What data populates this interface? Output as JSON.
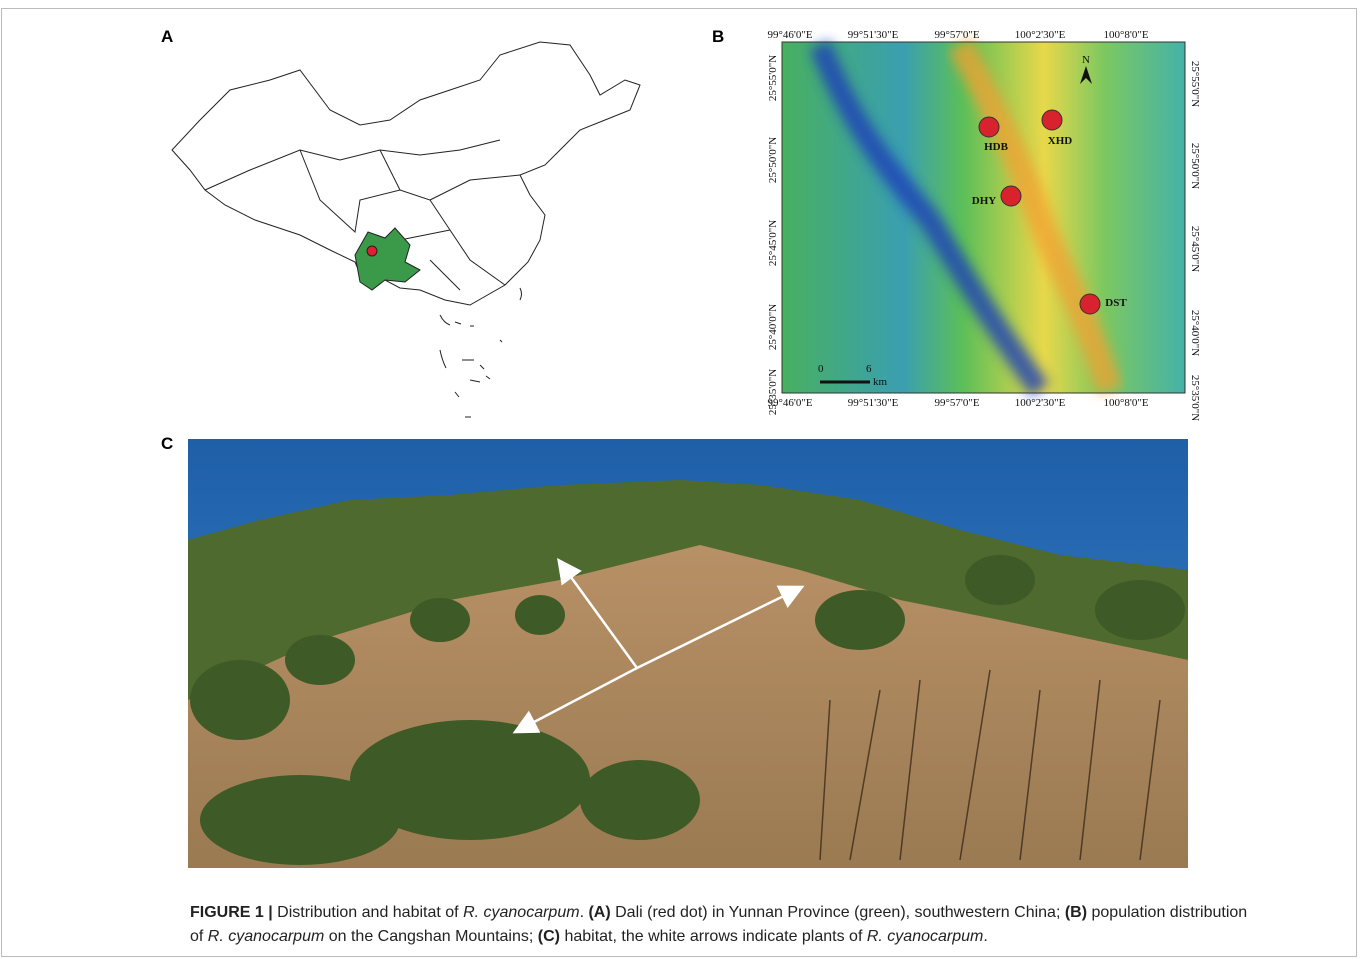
{
  "panels": {
    "a": {
      "label": "A"
    },
    "b": {
      "label": "B",
      "longitudes": [
        "99°46'0\"E",
        "99°51'30\"E",
        "99°57'0\"E",
        "100°2'30\"E",
        "100°8'0\"E"
      ],
      "latitudes": [
        "25°55'0\"N",
        "25°50'0\"N",
        "25°45'0\"N",
        "25°40'0\"N",
        "25°35'0\"N"
      ],
      "sites": [
        "HDB",
        "XHD",
        "DHY",
        "DST"
      ],
      "scale": {
        "start": "0",
        "end": "6",
        "unit": "km"
      },
      "north": "N"
    },
    "c": {
      "label": "C"
    }
  },
  "caption": {
    "segments": [
      {
        "text": "FIGURE 1 |",
        "style": "bold"
      },
      {
        "text": " Distribution and habitat of ",
        "style": "normal"
      },
      {
        "text": "R. cyanocarpum",
        "style": "italic"
      },
      {
        "text": ". ",
        "style": "normal"
      },
      {
        "text": "(A)",
        "style": "bold"
      },
      {
        "text": " Dali (red dot) in Yunnan Province (green), southwestern China; ",
        "style": "normal"
      },
      {
        "text": "(B)",
        "style": "bold"
      },
      {
        "text": " population distribution of ",
        "style": "normal"
      },
      {
        "text": "R. cyanocarpum",
        "style": "italic"
      },
      {
        "text": " on the Cangshan Mountains; ",
        "style": "normal"
      },
      {
        "text": "(C)",
        "style": "bold"
      },
      {
        "text": " habitat, the white arrows indicate plants of ",
        "style": "normal"
      },
      {
        "text": "R. cyanocarpum",
        "style": "italic"
      },
      {
        "text": ".",
        "style": "normal"
      }
    ]
  }
}
